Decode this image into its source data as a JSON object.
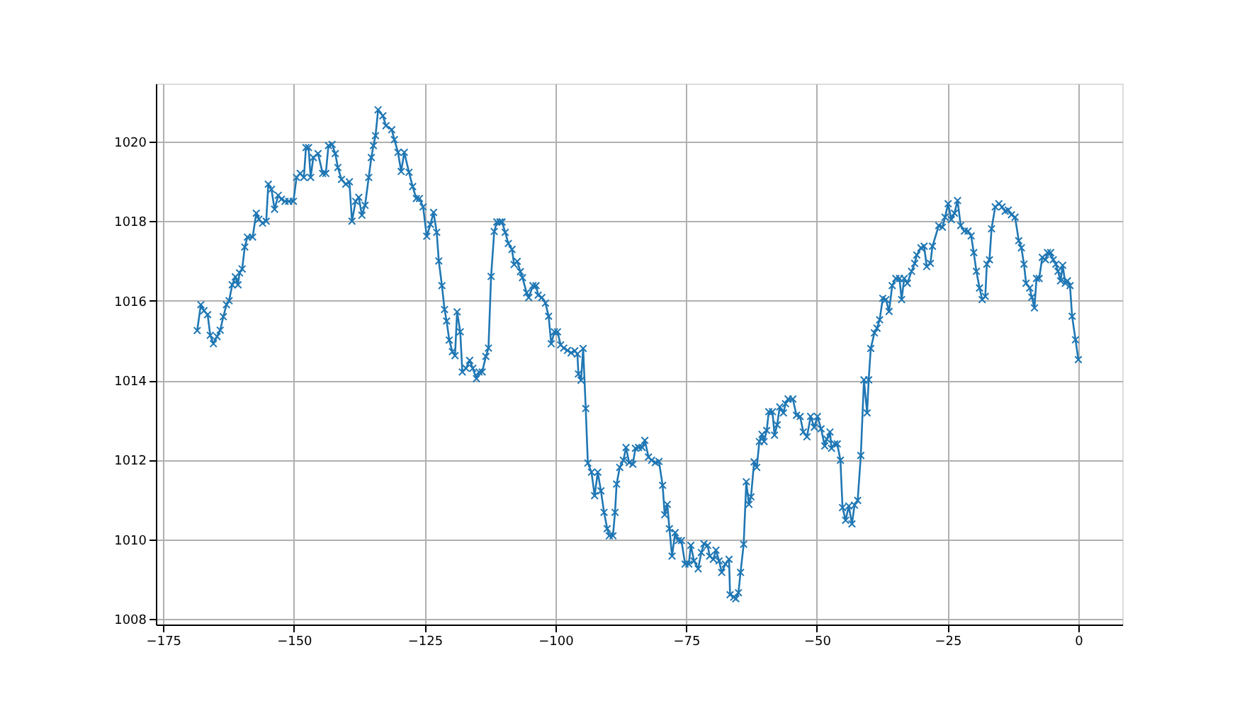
{
  "chart_data": {
    "type": "line",
    "marker": "cross",
    "line_style": "solid",
    "grid": true,
    "xlim": [
      -176.4,
      8.4
    ],
    "ylim": [
      1007.86,
      1021.46
    ],
    "xticks": [
      -175,
      -150,
      -125,
      -100,
      -75,
      -50,
      -25,
      0
    ],
    "yticks": [
      1008,
      1010,
      1012,
      1014,
      1016,
      1018,
      1020
    ],
    "series": [
      {
        "color": "#1f77b4",
        "x": [
          -168.5,
          -167.8,
          -167.2,
          -166.5,
          -166.0,
          -165.4,
          -164.7,
          -164.1,
          -163.5,
          -162.9,
          -162.4,
          -161.8,
          -161.2,
          -160.7,
          -160.4,
          -159.9,
          -159.4,
          -158.9,
          -157.9,
          -157.2,
          -156.7,
          -156.0,
          -155.3,
          -154.9,
          -154.3,
          -153.7,
          -153.0,
          -152.4,
          -151.7,
          -151.0,
          -150.1,
          -149.5,
          -148.8,
          -148.1,
          -147.7,
          -147.2,
          -146.8,
          -146.3,
          -145.4,
          -144.5,
          -143.9,
          -143.4,
          -142.7,
          -142.1,
          -141.6,
          -140.9,
          -140.1,
          -139.4,
          -138.9,
          -138.2,
          -137.6,
          -137.0,
          -136.4,
          -135.7,
          -135.2,
          -134.8,
          -134.4,
          -133.9,
          -133.0,
          -132.4,
          -131.3,
          -130.8,
          -130.1,
          -129.5,
          -128.9,
          -128.0,
          -127.3,
          -126.6,
          -126.0,
          -125.3,
          -124.6,
          -123.9,
          -123.3,
          -122.7,
          -122.3,
          -121.7,
          -121.2,
          -120.8,
          -120.3,
          -119.7,
          -119.2,
          -118.8,
          -118.2,
          -117.8,
          -117.1,
          -116.4,
          -115.8,
          -115.1,
          -114.6,
          -114.0,
          -113.3,
          -112.8,
          -112.3,
          -111.7,
          -111.2,
          -110.6,
          -110.2,
          -109.6,
          -109.0,
          -108.3,
          -107.9,
          -107.3,
          -106.7,
          -106.3,
          -105.5,
          -105.1,
          -104.3,
          -103.7,
          -103.3,
          -102.6,
          -101.9,
          -101.3,
          -100.8,
          -100.2,
          -99.6,
          -99.0,
          -98.4,
          -97.7,
          -97.0,
          -96.3,
          -95.8,
          -95.6,
          -95.1,
          -94.7,
          -94.2,
          -93.8,
          -93.1,
          -92.5,
          -91.9,
          -91.3,
          -90.7,
          -90.1,
          -89.7,
          -89.0,
          -88.6,
          -88.3,
          -87.7,
          -87.0,
          -86.5,
          -85.9,
          -85.2,
          -84.7,
          -84.1,
          -83.4,
          -82.9,
          -82.2,
          -81.6,
          -80.9,
          -80.2,
          -79.5,
          -79.1,
          -78.6,
          -78.2,
          -77.7,
          -77.1,
          -76.5,
          -75.9,
          -75.2,
          -74.5,
          -74.1,
          -73.5,
          -72.7,
          -72.1,
          -71.6,
          -70.9,
          -70.5,
          -69.8,
          -69.3,
          -68.7,
          -68.2,
          -67.5,
          -66.8,
          -66.6,
          -65.9,
          -65.5,
          -65.0,
          -64.6,
          -64.0,
          -63.5,
          -63.0,
          -62.6,
          -62.0,
          -61.5,
          -61.0,
          -60.5,
          -60.1,
          -59.6,
          -59.2,
          -58.5,
          -58.1,
          -57.6,
          -57.1,
          -56.4,
          -56.0,
          -55.5,
          -54.6,
          -53.9,
          -53.2,
          -52.6,
          -51.9,
          -51.2,
          -50.5,
          -49.9,
          -49.2,
          -48.5,
          -48.1,
          -47.5,
          -47.2,
          -46.6,
          -46.1,
          -45.5,
          -45.1,
          -44.5,
          -43.9,
          -43.3,
          -42.8,
          -42.2,
          -41.6,
          -41.0,
          -40.4,
          -40.1,
          -39.7,
          -39.0,
          -38.5,
          -38.0,
          -37.4,
          -36.8,
          -36.2,
          -35.6,
          -34.9,
          -34.2,
          -33.8,
          -33.3,
          -32.7,
          -31.9,
          -31.3,
          -30.9,
          -30.1,
          -29.5,
          -29.0,
          -28.3,
          -27.9,
          -26.7,
          -26.0,
          -25.5,
          -24.9,
          -24.3,
          -23.7,
          -23.1,
          -22.5,
          -21.8,
          -21.1,
          -20.5,
          -20.0,
          -19.5,
          -18.9,
          -18.4,
          -17.8,
          -17.5,
          -17.0,
          -16.6,
          -15.9,
          -15.2,
          -14.6,
          -14.0,
          -13.4,
          -12.8,
          -12.1,
          -11.4,
          -10.9,
          -10.4,
          -10.0,
          -9.3,
          -8.9,
          -8.4,
          -8.0,
          -7.5,
          -6.9,
          -6.3,
          -5.9,
          -5.3,
          -4.8,
          -4.3,
          -3.9,
          -3.4,
          -3.0,
          -2.5,
          -2.1,
          -1.6,
          -1.2,
          -0.55,
          0.0
        ],
        "values": [
          1015.25,
          1015.9,
          1015.75,
          1015.65,
          1015.13,
          1014.92,
          1015.1,
          1015.26,
          1015.6,
          1015.9,
          1016.0,
          1016.4,
          1016.6,
          1016.4,
          1016.7,
          1016.8,
          1017.35,
          1017.6,
          1017.6,
          1018.2,
          1018.05,
          1017.95,
          1018.0,
          1018.93,
          1018.8,
          1018.3,
          1018.65,
          1018.55,
          1018.5,
          1018.5,
          1018.5,
          1019.1,
          1019.2,
          1019.1,
          1019.85,
          1019.85,
          1019.1,
          1019.6,
          1019.7,
          1019.2,
          1019.2,
          1019.9,
          1019.93,
          1019.7,
          1019.35,
          1019.05,
          1018.93,
          1018.99,
          1018.0,
          1018.5,
          1018.6,
          1018.15,
          1018.4,
          1019.1,
          1019.6,
          1019.9,
          1020.15,
          1020.8,
          1020.65,
          1020.4,
          1020.3,
          1020.05,
          1019.73,
          1019.25,
          1019.73,
          1019.23,
          1018.87,
          1018.57,
          1018.57,
          1018.36,
          1017.62,
          1017.92,
          1018.22,
          1017.72,
          1017.0,
          1016.38,
          1015.78,
          1015.49,
          1015.01,
          1014.72,
          1014.62,
          1015.72,
          1015.22,
          1014.21,
          1014.3,
          1014.5,
          1014.3,
          1014.04,
          1014.21,
          1014.21,
          1014.6,
          1014.81,
          1016.61,
          1017.74,
          1017.98,
          1017.98,
          1017.98,
          1017.72,
          1017.44,
          1017.29,
          1016.91,
          1016.99,
          1016.73,
          1016.58,
          1016.2,
          1016.08,
          1016.38,
          1016.38,
          1016.14,
          1016.08,
          1015.94,
          1015.61,
          1014.92,
          1015.22,
          1015.22,
          1014.89,
          1014.81,
          1014.75,
          1014.69,
          1014.74,
          1014.66,
          1014.16,
          1014.0,
          1014.8,
          1013.29,
          1011.92,
          1011.69,
          1011.1,
          1011.69,
          1011.22,
          1010.68,
          1010.27,
          1010.09,
          1010.09,
          1010.68,
          1011.39,
          1011.81,
          1011.99,
          1012.31,
          1011.93,
          1011.89,
          1012.29,
          1012.31,
          1012.31,
          1012.49,
          1012.07,
          1011.99,
          1011.93,
          1011.96,
          1011.36,
          1010.62,
          1010.88,
          1010.27,
          1009.58,
          1010.17,
          1009.97,
          1009.97,
          1009.38,
          1009.38,
          1009.85,
          1009.46,
          1009.26,
          1009.67,
          1009.89,
          1009.85,
          1009.58,
          1009.5,
          1009.73,
          1009.46,
          1009.17,
          1009.38,
          1009.5,
          1008.61,
          1008.55,
          1008.51,
          1008.66,
          1009.17,
          1009.88,
          1011.45,
          1010.88,
          1011.07,
          1011.95,
          1011.81,
          1012.46,
          1012.64,
          1012.46,
          1012.74,
          1013.21,
          1013.21,
          1012.62,
          1012.88,
          1013.33,
          1013.18,
          1013.41,
          1013.53,
          1013.53,
          1013.12,
          1013.09,
          1012.7,
          1012.58,
          1013.09,
          1012.82,
          1013.09,
          1012.78,
          1012.35,
          1012.52,
          1012.7,
          1012.29,
          1012.4,
          1012.4,
          1011.99,
          1010.8,
          1010.48,
          1010.84,
          1010.39,
          1010.86,
          1010.98,
          1012.11,
          1014.01,
          1013.18,
          1014.01,
          1014.8,
          1015.19,
          1015.31,
          1015.52,
          1016.06,
          1016.03,
          1015.73,
          1016.38,
          1016.56,
          1016.56,
          1016.03,
          1016.56,
          1016.44,
          1016.74,
          1016.94,
          1017.15,
          1017.33,
          1017.37,
          1016.86,
          1016.94,
          1017.37,
          1017.89,
          1017.85,
          1018.1,
          1018.44,
          1018.04,
          1018.2,
          1018.52,
          1017.89,
          1017.75,
          1017.75,
          1017.63,
          1017.21,
          1016.74,
          1016.32,
          1016.03,
          1016.11,
          1016.92,
          1017.03,
          1017.81,
          1018.36,
          1018.44,
          1018.36,
          1018.25,
          1018.28,
          1018.16,
          1018.1,
          1017.51,
          1017.33,
          1016.92,
          1016.44,
          1016.32,
          1016.09,
          1015.82,
          1016.56,
          1016.56,
          1017.09,
          1017.03,
          1017.21,
          1017.21,
          1017.03,
          1016.92,
          1016.74,
          1016.5,
          1016.89,
          1016.44,
          1016.5,
          1016.38,
          1015.61,
          1015.02,
          1014.52
        ]
      }
    ]
  }
}
